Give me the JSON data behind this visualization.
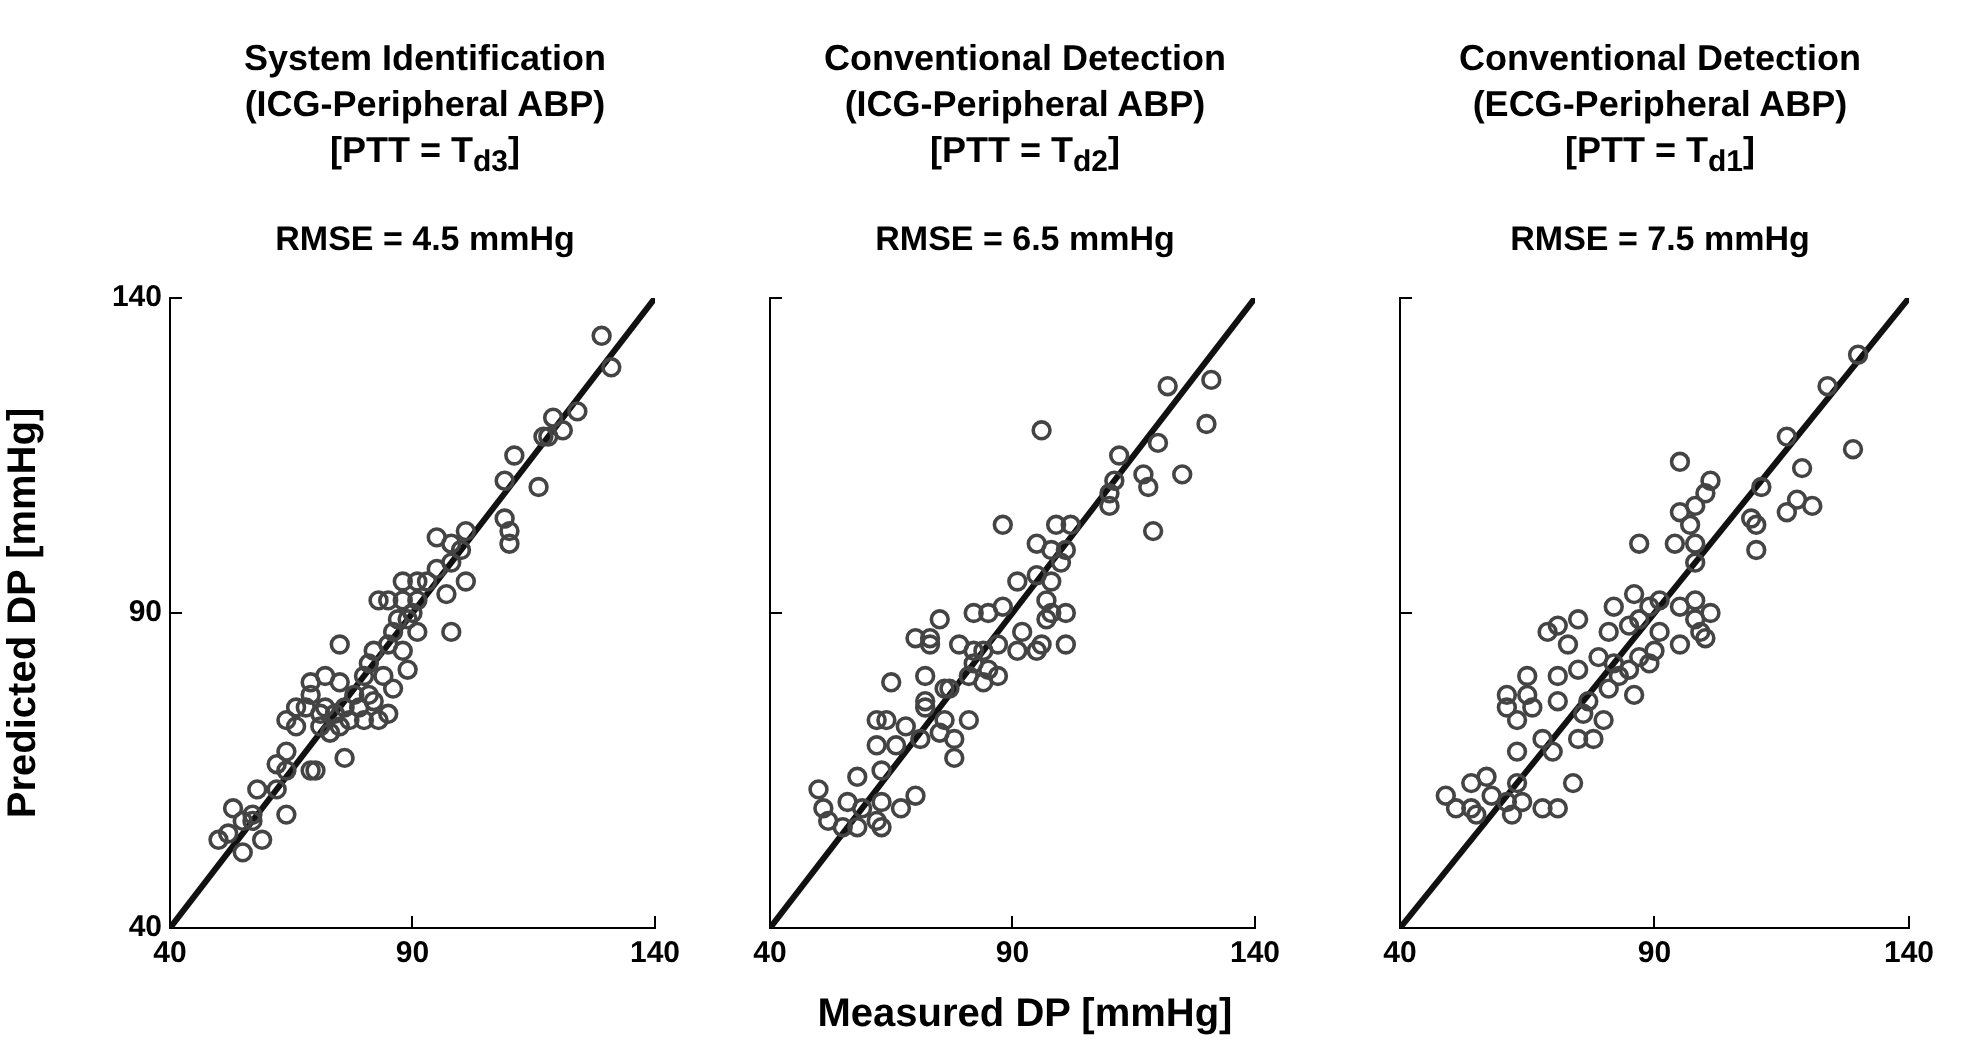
{
  "chart_data": [
    {
      "type": "scatter",
      "title": "System Identification\n(ICG-Peripheral ABP)\n[PTT = T$_{d3}$]",
      "subtitle": "RMSE = 4.5 mmHg",
      "ylabel": "Predicted DP [mmHg]",
      "xlim": [
        40,
        140
      ],
      "ylim": [
        40,
        140
      ],
      "xticks": [
        40,
        90,
        140
      ],
      "yticks": [
        40,
        90,
        140
      ],
      "grid": false,
      "series": [
        {
          "type": "scatter",
          "marker": "circle",
          "color": "#444444",
          "x": [
            129,
            131,
            124,
            119,
            121,
            117,
            118,
            111,
            109,
            116,
            109,
            110,
            110,
            95,
            101,
            98,
            100,
            98,
            101,
            95,
            97,
            93,
            91,
            88,
            83,
            85,
            88,
            91,
            98,
            90,
            89,
            91,
            87,
            86,
            85,
            88,
            89,
            75,
            82,
            81,
            80,
            84,
            86,
            72,
            69,
            75,
            78,
            81,
            82,
            85,
            83,
            66,
            68,
            64,
            66,
            72,
            74,
            71,
            76,
            79,
            75,
            73,
            77,
            80,
            76,
            64,
            62,
            64,
            69,
            70,
            58,
            62,
            53,
            57,
            55,
            57,
            64,
            50,
            52,
            55,
            59,
            69,
            71
          ],
          "values": [
            134,
            129,
            122,
            121,
            119,
            118,
            118,
            115,
            111,
            110,
            105,
            103,
            101,
            102,
            103,
            101,
            100,
            98,
            95,
            97,
            93,
            95,
            95,
            95,
            92,
            92,
            92,
            92,
            87,
            90,
            89,
            87,
            89,
            87,
            85,
            84,
            81,
            85,
            84,
            82,
            80,
            80,
            78,
            80,
            79,
            79,
            77,
            77,
            76,
            74,
            73,
            75,
            75,
            73,
            72,
            75,
            74,
            72,
            75,
            75,
            72,
            71,
            73,
            73,
            67,
            68,
            66,
            65,
            65,
            65,
            62,
            62,
            59,
            58,
            57,
            57,
            58,
            54,
            55,
            52,
            54,
            77,
            74
          ]
        },
        {
          "type": "line",
          "color": "#111111",
          "x": [
            40,
            140
          ],
          "values": [
            40,
            140
          ]
        }
      ]
    },
    {
      "type": "scatter",
      "title": "Conventional Detection\n(ICG-Peripheral ABP)\n[PTT = T$_{d2}$]",
      "subtitle": "RMSE = 6.5 mmHg",
      "xlabel": "Measured DP [mmHg]",
      "xlim": [
        40,
        140
      ],
      "ylim": [
        40,
        140
      ],
      "xticks": [
        40,
        90,
        140
      ],
      "yticks": [
        40,
        90,
        140
      ],
      "tick_labels": "x",
      "grid": false,
      "series": [
        {
          "type": "scatter",
          "marker": "circle",
          "color": "#444444",
          "x": [
            131,
            122,
            130,
            96,
            120,
            112,
            111,
            117,
            118,
            125,
            110,
            110,
            119,
            88,
            99,
            102,
            95,
            98,
            101,
            100,
            91,
            95,
            98,
            97,
            101,
            98,
            97,
            101,
            96,
            95,
            92,
            88,
            85,
            82,
            75,
            73,
            70,
            73,
            79,
            82,
            84,
            87,
            91,
            82,
            85,
            81,
            84,
            87,
            65,
            72,
            72,
            76,
            77,
            72,
            64,
            62,
            68,
            62,
            66,
            71,
            75,
            76,
            78,
            81,
            78,
            63,
            58,
            50,
            51,
            52,
            56,
            55,
            58,
            59,
            63,
            62,
            63,
            67,
            70
          ],
          "values": [
            127,
            126,
            120,
            119,
            117,
            115,
            111,
            112,
            110,
            112,
            109,
            107,
            103,
            104,
            104,
            104,
            101,
            100,
            100,
            98,
            95,
            96,
            95,
            92,
            90,
            90,
            89,
            85,
            85,
            84,
            87,
            91,
            90,
            90,
            89,
            86,
            86,
            85,
            85,
            84,
            84,
            85,
            84,
            82,
            81,
            80,
            79,
            80,
            79,
            80,
            76,
            78,
            78,
            75,
            73,
            73,
            72,
            69,
            69,
            70,
            71,
            73,
            70,
            73,
            67,
            65,
            64,
            62,
            59,
            57,
            60,
            56,
            56,
            59,
            60,
            57,
            56,
            59,
            61
          ]
        },
        {
          "type": "line",
          "color": "#111111",
          "x": [
            40,
            140
          ],
          "values": [
            40,
            140
          ]
        }
      ]
    },
    {
      "type": "scatter",
      "title": "Conventional Detection\n(ECG-Peripheral ABP)\n[PTT = T$_{d1}$]",
      "subtitle": "RMSE = 7.5 mmHg",
      "xlim": [
        40,
        140
      ],
      "ylim": [
        40,
        140
      ],
      "xticks": [
        40,
        90,
        140
      ],
      "yticks": [
        40,
        90,
        140
      ],
      "tick_labels": "x",
      "grid": false,
      "series": [
        {
          "type": "scatter",
          "marker": "circle",
          "color": "#444444",
          "x": [
            130,
            124,
            129,
            116,
            119,
            111,
            116,
            118,
            121,
            109,
            110,
            110,
            95,
            101,
            100,
            98,
            95,
            97,
            87,
            94,
            98,
            98,
            91,
            95,
            98,
            101,
            98,
            99,
            100,
            95,
            89,
            86,
            82,
            81,
            85,
            87,
            91,
            90,
            87,
            89,
            85,
            82,
            79,
            83,
            86,
            81,
            75,
            71,
            69,
            73,
            75,
            71,
            65,
            61,
            65,
            66,
            71,
            77,
            76,
            61,
            63,
            68,
            70,
            75,
            78,
            80,
            63,
            74,
            63,
            54,
            57,
            58,
            49,
            51,
            54,
            55,
            61,
            62,
            64,
            68,
            71
          ],
          "values": [
            131,
            126,
            116,
            118,
            113,
            110,
            106,
            108,
            107,
            105,
            104,
            100,
            114,
            111,
            109,
            107,
            106,
            104,
            101,
            101,
            101,
            98,
            92,
            91,
            92,
            90,
            89,
            87,
            86,
            85,
            91,
            93,
            91,
            87,
            88,
            89,
            87,
            84,
            83,
            82,
            81,
            82,
            83,
            80,
            77,
            78,
            89,
            88,
            87,
            85,
            81,
            80,
            80,
            77,
            77,
            75,
            76,
            76,
            74,
            75,
            73,
            70,
            68,
            70,
            70,
            73,
            68,
            63,
            63,
            63,
            64,
            61,
            61,
            59,
            59,
            58,
            60,
            58,
            60,
            59,
            59
          ]
        },
        {
          "type": "line",
          "color": "#111111",
          "x": [
            40,
            140
          ],
          "values": [
            40,
            140
          ]
        }
      ]
    }
  ]
}
